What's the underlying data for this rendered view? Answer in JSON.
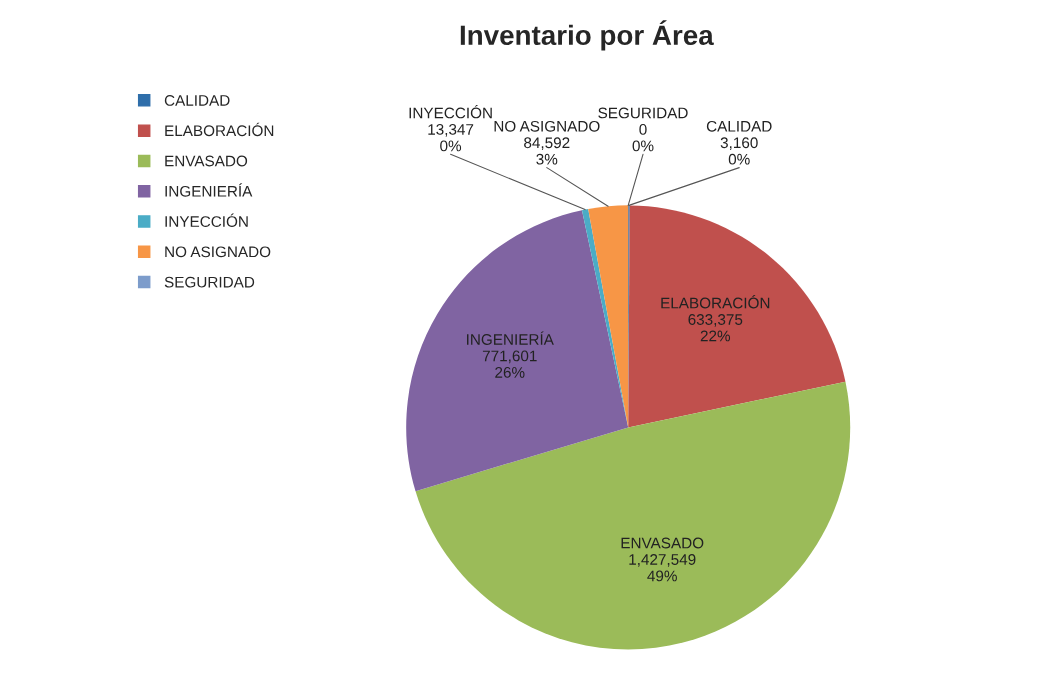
{
  "chart_data": {
    "type": "pie",
    "title": "Inventario por Área",
    "categories": [
      "CALIDAD",
      "ELABORACIÓN",
      "ENVASADO",
      "INGENIERÍA",
      "INYECCIÓN",
      "NO ASIGNADO",
      "SEGURIDAD"
    ],
    "values": [
      3160,
      633375,
      1427549,
      771601,
      13347,
      84592,
      0
    ],
    "value_labels": [
      "3,160\n0%",
      "633,375\n22%",
      "1,427,549\n49%",
      "771,601\n26%",
      "13,347\n0%",
      "84,592\n3%",
      "0\n0%"
    ],
    "colors": [
      "#2f6eaa",
      "#c0504d",
      "#9bbb59",
      "#8064a2",
      "#4bacc6",
      "#f79646",
      "#7d9ccb"
    ],
    "legend": "left"
  }
}
